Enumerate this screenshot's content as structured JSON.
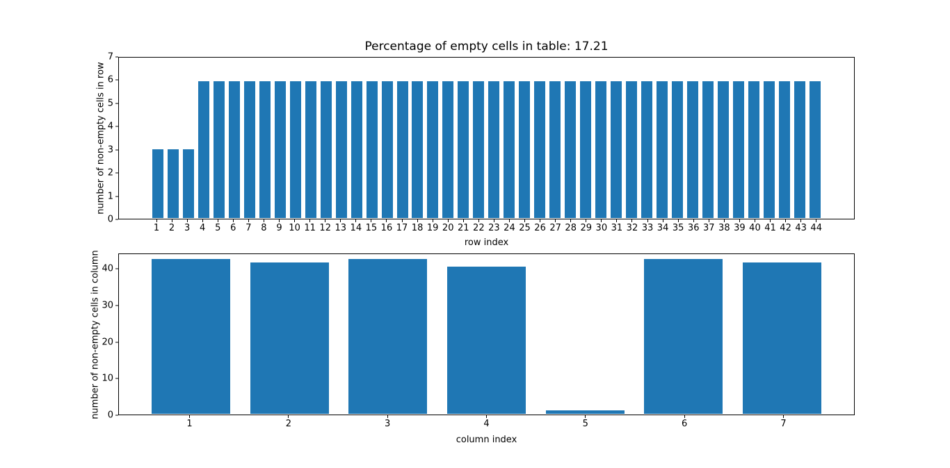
{
  "style": {
    "bar_color": "#1f77b4",
    "spine_color": "#000000",
    "background": "#ffffff"
  },
  "chart_data": [
    {
      "type": "bar",
      "title": "Percentage of empty cells in table: 17.21",
      "xlabel": "row index",
      "ylabel": "number of non-empty cells in row",
      "categories": [
        "1",
        "2",
        "3",
        "4",
        "5",
        "6",
        "7",
        "8",
        "9",
        "10",
        "11",
        "12",
        "13",
        "14",
        "15",
        "16",
        "17",
        "18",
        "19",
        "20",
        "21",
        "22",
        "23",
        "24",
        "25",
        "26",
        "27",
        "28",
        "29",
        "30",
        "31",
        "32",
        "33",
        "34",
        "35",
        "36",
        "37",
        "38",
        "39",
        "40",
        "41",
        "42",
        "43",
        "44"
      ],
      "values": [
        3,
        3,
        3,
        6,
        6,
        6,
        6,
        6,
        6,
        6,
        6,
        6,
        6,
        6,
        6,
        6,
        6,
        6,
        6,
        6,
        6,
        6,
        6,
        6,
        6,
        6,
        6,
        6,
        6,
        6,
        6,
        6,
        6,
        6,
        6,
        6,
        6,
        6,
        6,
        6,
        6,
        6,
        6,
        6
      ],
      "ylim": [
        0,
        7
      ],
      "yticks": [
        0,
        1,
        2,
        3,
        4,
        5,
        6,
        7
      ],
      "grid": false,
      "legend": null
    },
    {
      "type": "bar",
      "title": "",
      "xlabel": "column index",
      "ylabel": "number of non-empty cells in column",
      "categories": [
        "1",
        "2",
        "3",
        "4",
        "5",
        "6",
        "7"
      ],
      "values": [
        43,
        42,
        43,
        41,
        1,
        43,
        42
      ],
      "ylim": [
        0,
        44.2
      ],
      "yticks": [
        0,
        10,
        20,
        30,
        40
      ],
      "grid": false,
      "legend": null
    }
  ]
}
